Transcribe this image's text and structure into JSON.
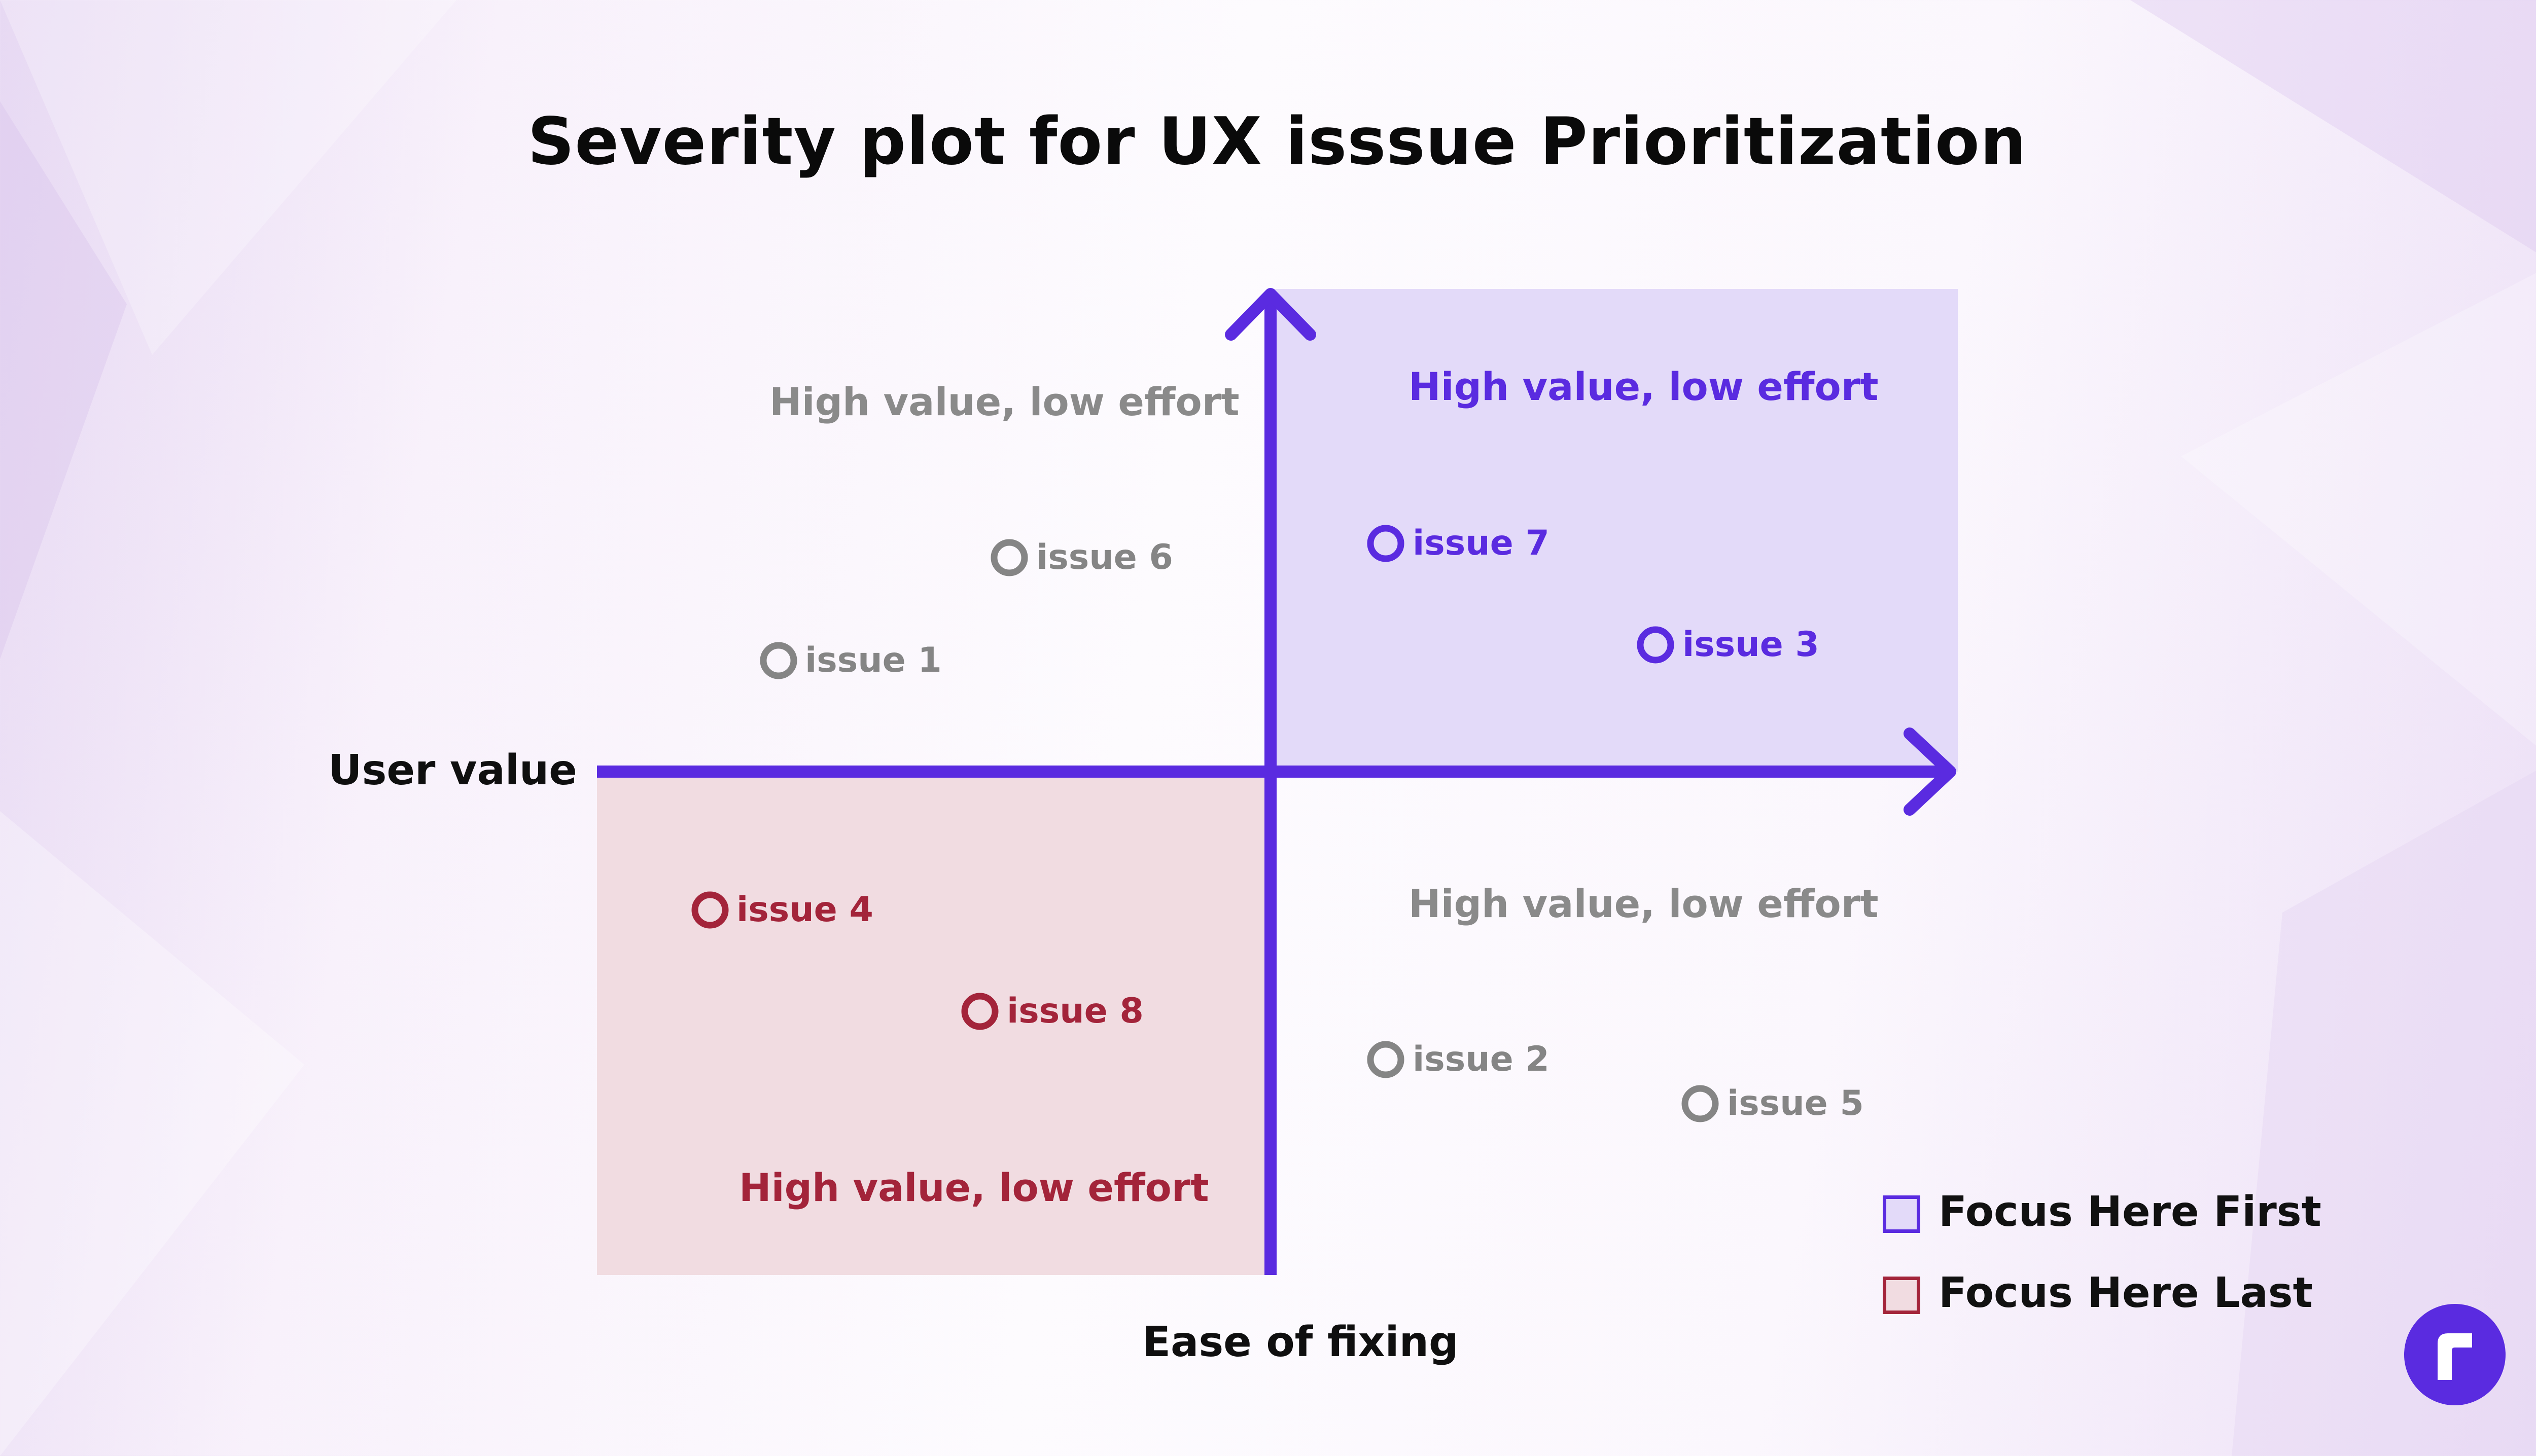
{
  "title": "Severity plot for UX isssue Prioritization",
  "axes": {
    "y_label": "User value",
    "x_label": "Ease of fixing",
    "color": "#5a2be0"
  },
  "quadrants": {
    "top_left": {
      "label": "High value, low effort",
      "color": "#8a8a8a"
    },
    "top_right": {
      "label": "High value, low effort",
      "color": "#5a2be0",
      "fill": "#e3daf9"
    },
    "bottom_left": {
      "label": "High value, low effort",
      "color": "#a3243a",
      "fill": "#f1dce1"
    },
    "bottom_right": {
      "label": "High value, low effort",
      "color": "#8a8a8a"
    }
  },
  "issues": [
    {
      "label": "issue 6",
      "group": "gray"
    },
    {
      "label": "issue 1",
      "group": "gray"
    },
    {
      "label": "issue 7",
      "group": "purple"
    },
    {
      "label": "issue 3",
      "group": "purple"
    },
    {
      "label": "issue 4",
      "group": "red"
    },
    {
      "label": "issue 8",
      "group": "red"
    },
    {
      "label": "issue 2",
      "group": "gray"
    },
    {
      "label": "issue 5",
      "group": "gray"
    }
  ],
  "legend": [
    {
      "label": "Focus Here First",
      "fill": "#e3daf9",
      "border": "#5a2be0"
    },
    {
      "label": "Focus Here Last",
      "fill": "#f1dce1",
      "border": "#a3243a"
    }
  ],
  "logo": {
    "icon": "r-logo-icon",
    "color": "#5a2be0"
  }
}
